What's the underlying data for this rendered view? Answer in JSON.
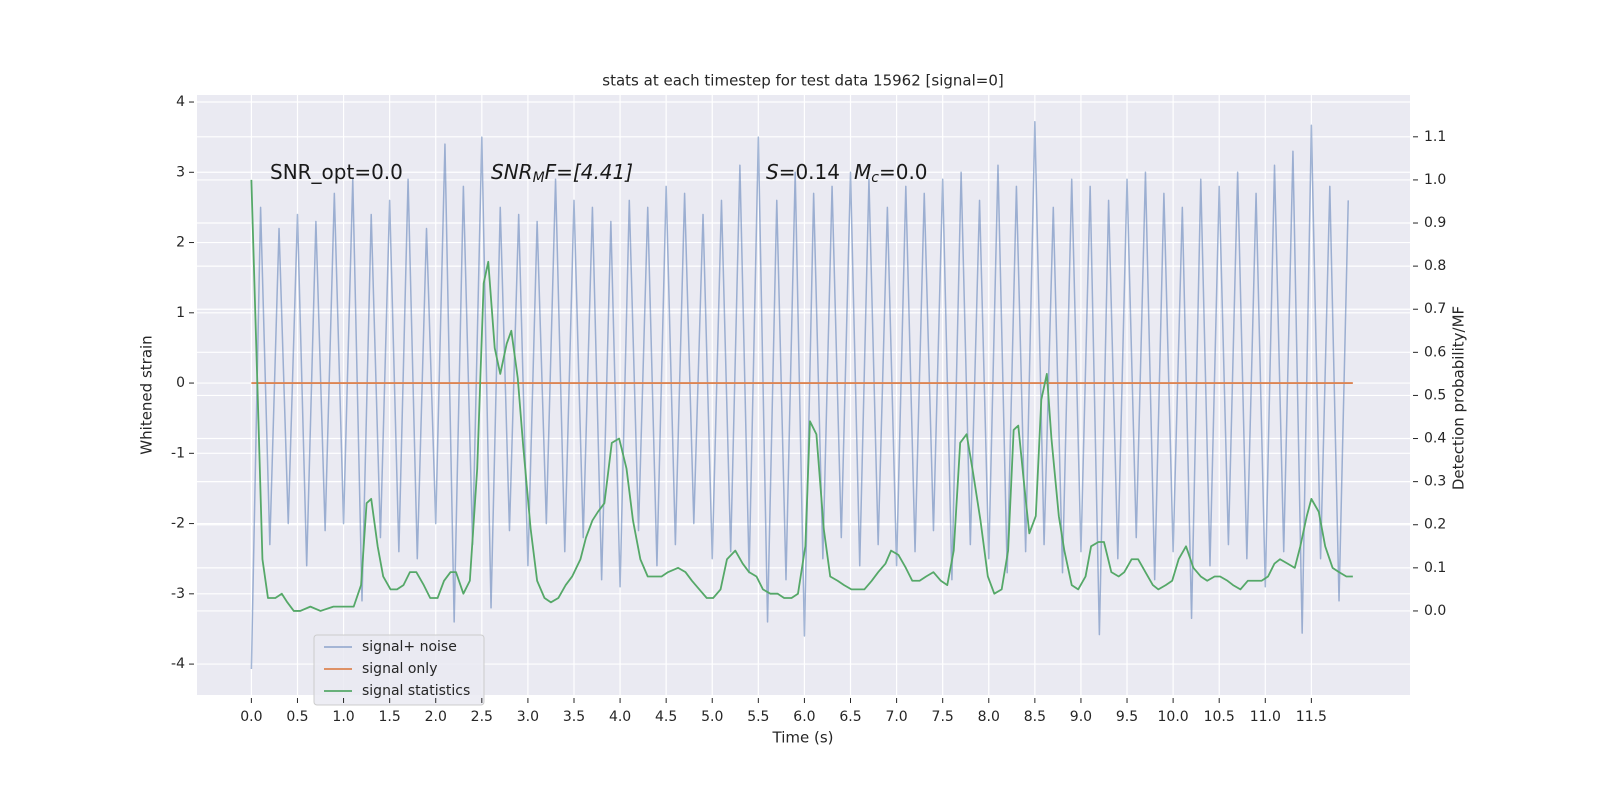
{
  "chart_data": {
    "type": "line",
    "title": "stats at each timestep for test data 15962 [signal=0]",
    "xlabel": "Time (s)",
    "ylabel": "Whitened strain",
    "y2label": "Detection probability/MF",
    "annotations": [
      [
        "SNR_opt=0.0"
      ],
      [
        "SNR",
        "M",
        "F=[4.41]"
      ],
      [
        "S",
        "=0.14",
        "M",
        "c",
        "=0.0"
      ]
    ],
    "xlim": [
      -0.59,
      12.57
    ],
    "ylim": [
      -4.44,
      4.1
    ],
    "y2lim": [
      -0.195,
      1.197
    ],
    "xticks": [
      {
        "value": 0,
        "label": "0.0"
      },
      0.5,
      {
        "value": 1,
        "label": "1.0"
      },
      1.5,
      {
        "value": 2,
        "label": "2.0"
      },
      2.5,
      {
        "value": 3,
        "label": "3.0"
      },
      3.5,
      {
        "value": 4,
        "label": "4.0"
      },
      4.5,
      {
        "value": 5,
        "label": "5.0"
      },
      5.5,
      {
        "value": 6,
        "label": "6.0"
      },
      6.5,
      {
        "value": 7,
        "label": "7.0"
      },
      7.5,
      {
        "value": 8,
        "label": "8.0"
      },
      8.5,
      {
        "value": 9,
        "label": "9.0"
      },
      9.5,
      {
        "value": 10,
        "label": "10.0"
      },
      10.5,
      {
        "value": 11,
        "label": "11.0"
      },
      11.5
    ],
    "yticks": [
      -4,
      -3,
      -2,
      -1,
      0,
      1,
      2,
      3,
      4
    ],
    "y2ticks": [
      {
        "value": 0,
        "label": "0.0"
      },
      0.1,
      0.2,
      0.3,
      0.4,
      0.5,
      0.6,
      0.7,
      0.8,
      0.9,
      {
        "value": 1,
        "label": "1.0"
      },
      1.1
    ],
    "grid": true,
    "legend": "lower left",
    "series": [
      {
        "name": "signal+ noise",
        "color": "#4c72b0",
        "x": [
          0.0,
          0.1,
          0.2,
          0.3,
          0.4,
          0.5,
          0.6,
          0.7,
          0.8,
          0.9,
          1.0,
          1.1,
          1.2,
          1.3,
          1.4,
          1.5,
          1.6,
          1.7,
          1.8,
          1.9,
          2.0,
          2.1,
          2.2,
          2.3,
          2.4,
          2.5,
          2.6,
          2.7,
          2.8,
          2.9,
          3.0,
          3.1,
          3.2,
          3.3,
          3.4,
          3.5,
          3.6,
          3.7,
          3.8,
          3.9,
          4.0,
          4.1,
          4.2,
          4.3,
          4.4,
          4.5,
          4.6,
          4.7,
          4.8,
          4.9,
          5.0,
          5.1,
          5.2,
          5.3,
          5.4,
          5.5,
          5.6,
          5.7,
          5.8,
          5.9,
          6.0,
          6.1,
          6.2,
          6.3,
          6.4,
          6.5,
          6.6,
          6.7,
          6.8,
          6.9,
          7.0,
          7.1,
          7.2,
          7.3,
          7.4,
          7.5,
          7.6,
          7.7,
          7.8,
          7.9,
          8.0,
          8.1,
          8.2,
          8.3,
          8.4,
          8.5,
          8.6,
          8.7,
          8.8,
          8.9,
          9.0,
          9.1,
          9.2,
          9.3,
          9.4,
          9.5,
          9.6,
          9.7,
          9.8,
          9.9,
          10.0,
          10.1,
          10.2,
          10.3,
          10.4,
          10.5,
          10.6,
          10.7,
          10.8,
          10.9,
          11.0,
          11.1,
          11.2,
          11.3,
          11.4,
          11.5,
          11.6,
          11.7,
          11.8,
          11.9
        ],
        "values": [
          -4.07,
          2.5,
          -2.3,
          2.2,
          -2.0,
          2.4,
          -2.6,
          2.3,
          -2.1,
          2.7,
          -2.0,
          2.9,
          -3.1,
          2.4,
          -2.2,
          2.6,
          -2.4,
          2.9,
          -2.5,
          2.2,
          -2.0,
          3.4,
          -3.4,
          2.8,
          -2.3,
          3.5,
          -3.2,
          2.5,
          -2.1,
          2.4,
          -2.6,
          2.3,
          -2.0,
          2.9,
          -2.4,
          2.6,
          -2.2,
          2.5,
          -2.8,
          2.3,
          -2.9,
          2.6,
          -2.1,
          2.5,
          -2.6,
          2.8,
          -2.3,
          2.7,
          -2.0,
          2.4,
          -2.5,
          2.6,
          -2.4,
          3.1,
          -2.7,
          3.5,
          -3.4,
          2.6,
          -2.8,
          3.0,
          -3.6,
          2.7,
          -2.5,
          2.8,
          -2.2,
          3.0,
          -2.6,
          2.9,
          -2.3,
          2.5,
          -2.6,
          2.8,
          -2.4,
          2.7,
          -2.1,
          2.9,
          -2.8,
          3.0,
          -2.3,
          2.6,
          -2.5,
          3.1,
          -2.7,
          2.8,
          -2.4,
          3.72,
          -2.3,
          2.5,
          -2.7,
          2.9,
          -2.4,
          2.8,
          -3.58,
          2.6,
          -2.5,
          2.9,
          -2.2,
          3.0,
          -2.8,
          2.7,
          -2.4,
          2.5,
          -3.35,
          2.9,
          -2.6,
          2.8,
          -2.3,
          3.0,
          -2.5,
          2.7,
          -2.9,
          3.1,
          -2.4,
          3.3,
          -3.56,
          3.67,
          -2.5,
          2.8,
          -3.1,
          2.6
        ]
      },
      {
        "name": "signal only",
        "color": "#dd8452",
        "x": [
          0.0,
          11.95
        ],
        "values": [
          0,
          0
        ]
      },
      {
        "name": "signal statistics",
        "color": "#55a868",
        "axis": "y2",
        "x": [
          0.0,
          0.07,
          0.12,
          0.18,
          0.26,
          0.33,
          0.39,
          0.46,
          0.53,
          0.64,
          0.75,
          0.89,
          0.99,
          1.11,
          1.19,
          1.25,
          1.3,
          1.37,
          1.43,
          1.51,
          1.58,
          1.65,
          1.72,
          1.79,
          1.87,
          1.94,
          2.02,
          2.09,
          2.16,
          2.22,
          2.3,
          2.37,
          2.45,
          2.52,
          2.57,
          2.64,
          2.7,
          2.77,
          2.82,
          2.89,
          2.95,
          3.03,
          3.1,
          3.18,
          3.25,
          3.33,
          3.41,
          3.48,
          3.57,
          3.63,
          3.7,
          3.76,
          3.83,
          3.91,
          3.99,
          4.07,
          4.14,
          4.22,
          4.3,
          4.37,
          4.45,
          4.52,
          4.63,
          4.71,
          4.78,
          4.86,
          4.94,
          5.01,
          5.09,
          5.16,
          5.25,
          5.33,
          5.4,
          5.48,
          5.55,
          5.63,
          5.71,
          5.78,
          5.86,
          5.93,
          6.01,
          6.06,
          6.13,
          6.21,
          6.28,
          6.36,
          6.43,
          6.51,
          6.59,
          6.65,
          6.73,
          6.8,
          6.88,
          6.94,
          7.02,
          7.1,
          7.17,
          7.25,
          7.32,
          7.4,
          7.48,
          7.55,
          7.62,
          7.69,
          7.76,
          7.83,
          7.91,
          7.99,
          8.06,
          8.14,
          8.21,
          8.27,
          8.32,
          8.39,
          8.44,
          8.51,
          8.57,
          8.63,
          8.68,
          8.76,
          8.82,
          8.9,
          8.97,
          9.05,
          9.11,
          9.19,
          9.25,
          9.33,
          9.41,
          9.47,
          9.55,
          9.62,
          9.7,
          9.78,
          9.84,
          9.92,
          9.99,
          10.06,
          10.14,
          10.22,
          10.3,
          10.37,
          10.45,
          10.51,
          10.59,
          10.65,
          10.73,
          10.81,
          10.88,
          10.96,
          11.03,
          11.1,
          11.16,
          11.24,
          11.32,
          11.38,
          11.45,
          11.5,
          11.58,
          11.65,
          11.73,
          11.8,
          11.88,
          11.95
        ],
        "values": [
          1.0,
          0.49,
          0.12,
          0.03,
          0.03,
          0.04,
          0.02,
          0.0,
          0.0,
          0.01,
          0.0,
          0.01,
          0.01,
          0.01,
          0.06,
          0.25,
          0.26,
          0.15,
          0.08,
          0.05,
          0.05,
          0.06,
          0.09,
          0.09,
          0.06,
          0.03,
          0.03,
          0.07,
          0.09,
          0.09,
          0.04,
          0.07,
          0.33,
          0.76,
          0.81,
          0.61,
          0.55,
          0.62,
          0.65,
          0.54,
          0.38,
          0.19,
          0.07,
          0.03,
          0.02,
          0.03,
          0.06,
          0.08,
          0.12,
          0.17,
          0.21,
          0.23,
          0.25,
          0.39,
          0.4,
          0.33,
          0.21,
          0.12,
          0.08,
          0.08,
          0.08,
          0.09,
          0.1,
          0.09,
          0.07,
          0.05,
          0.03,
          0.03,
          0.05,
          0.12,
          0.14,
          0.11,
          0.09,
          0.08,
          0.05,
          0.04,
          0.04,
          0.03,
          0.03,
          0.04,
          0.15,
          0.44,
          0.41,
          0.19,
          0.08,
          0.07,
          0.06,
          0.05,
          0.05,
          0.05,
          0.07,
          0.09,
          0.11,
          0.14,
          0.13,
          0.1,
          0.07,
          0.07,
          0.08,
          0.09,
          0.07,
          0.06,
          0.14,
          0.39,
          0.41,
          0.32,
          0.21,
          0.08,
          0.04,
          0.05,
          0.14,
          0.42,
          0.43,
          0.28,
          0.18,
          0.22,
          0.49,
          0.55,
          0.4,
          0.22,
          0.14,
          0.06,
          0.05,
          0.08,
          0.15,
          0.16,
          0.16,
          0.09,
          0.08,
          0.09,
          0.12,
          0.12,
          0.09,
          0.06,
          0.05,
          0.06,
          0.07,
          0.12,
          0.15,
          0.1,
          0.08,
          0.07,
          0.08,
          0.08,
          0.07,
          0.06,
          0.05,
          0.07,
          0.07,
          0.07,
          0.08,
          0.11,
          0.12,
          0.11,
          0.1,
          0.15,
          0.22,
          0.26,
          0.23,
          0.15,
          0.1,
          0.09,
          0.08,
          0.08
        ]
      }
    ]
  }
}
